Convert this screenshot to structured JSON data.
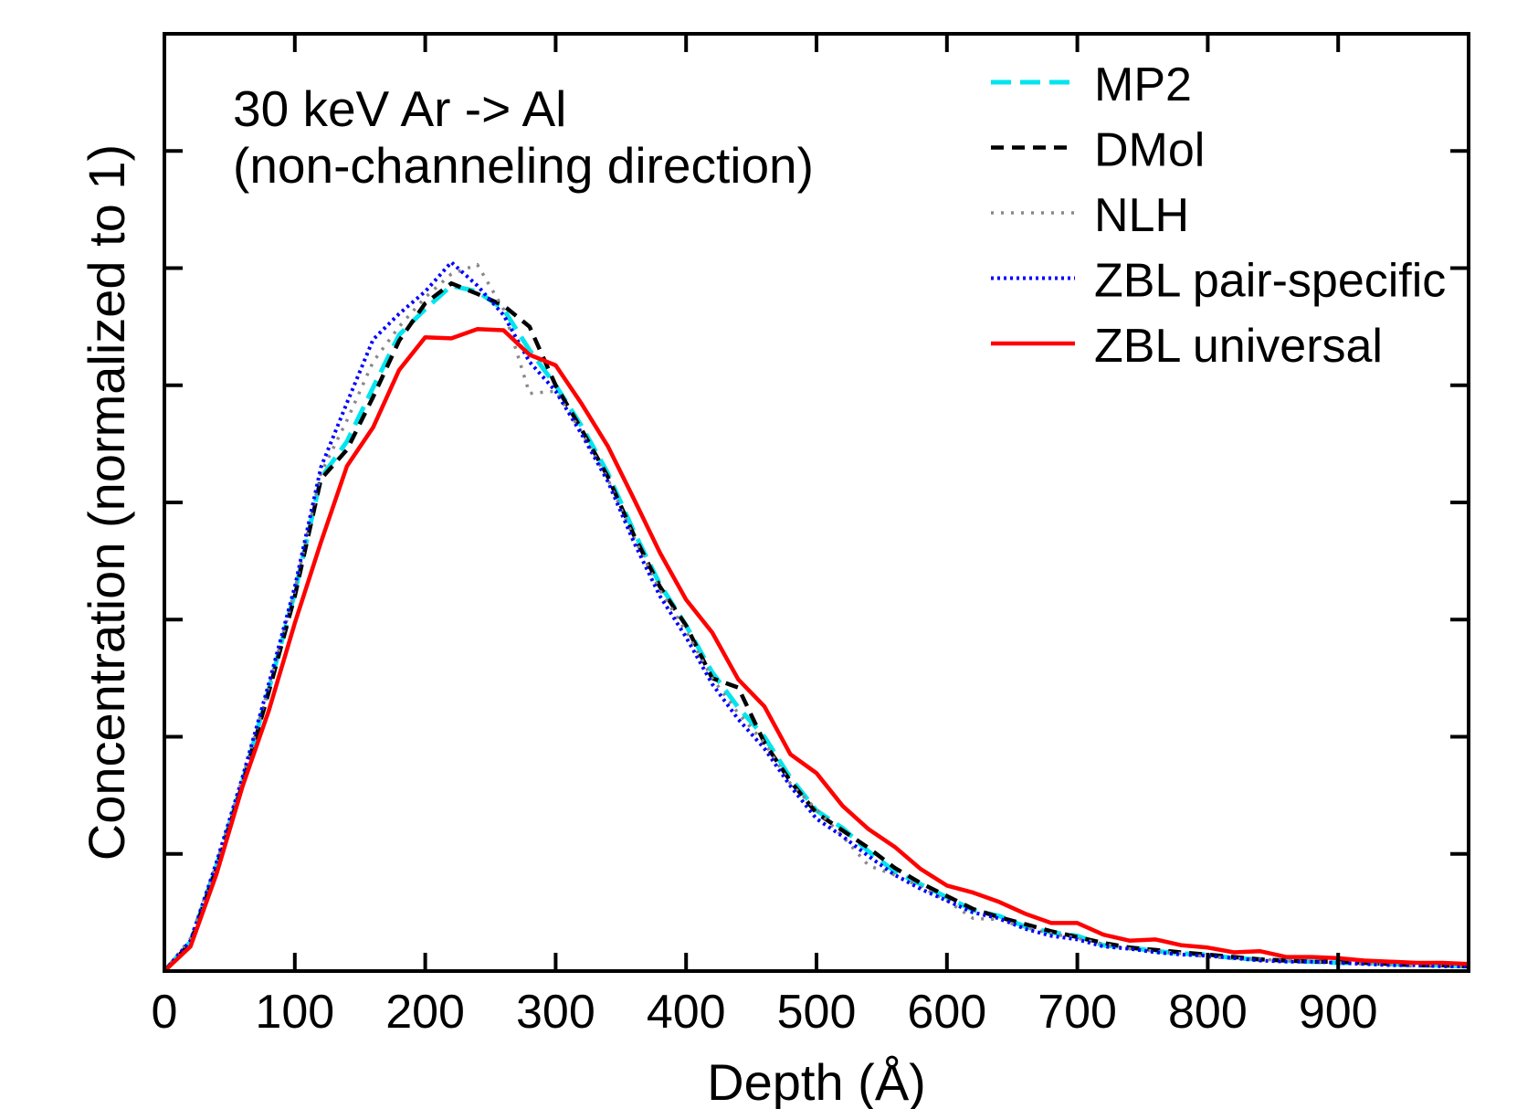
{
  "chart_data": {
    "type": "line",
    "title_lines": [
      "30 keV Ar -> Al",
      "(non-channeling direction)"
    ],
    "xlabel": "Depth (Å)",
    "ylabel": "Concentration (normalized to 1)",
    "xlim": [
      0,
      1000
    ],
    "ylim": [
      0,
      8
    ],
    "xticks": [
      0,
      100,
      200,
      300,
      400,
      500,
      600,
      700,
      800,
      900
    ],
    "xtick_labels": [
      "0",
      "100",
      "200",
      "300",
      "400",
      "500",
      "600",
      "700",
      "800",
      "900"
    ],
    "yticks_unlabeled": [
      1,
      2,
      3,
      4,
      5,
      6,
      7
    ],
    "grid": false,
    "legend_position": "top-right",
    "x": [
      0,
      20,
      40,
      60,
      80,
      100,
      120,
      140,
      160,
      180,
      200,
      220,
      240,
      260,
      280,
      300,
      320,
      340,
      360,
      380,
      400,
      420,
      440,
      460,
      480,
      500,
      520,
      540,
      560,
      580,
      600,
      620,
      640,
      660,
      680,
      700,
      720,
      740,
      760,
      780,
      800,
      820,
      840,
      860,
      880,
      900,
      920,
      940,
      960,
      980,
      1000
    ],
    "series": [
      {
        "name": "MP2",
        "color": "#00e5ee",
        "dash": "long-dash",
        "values": [
          0,
          0.25,
          0.9,
          1.62,
          2.4,
          3.23,
          4.21,
          4.52,
          4.98,
          5.43,
          5.65,
          5.85,
          5.8,
          5.65,
          5.3,
          5.0,
          4.65,
          4.25,
          3.75,
          3.3,
          2.95,
          2.55,
          2.25,
          2.0,
          1.65,
          1.37,
          1.22,
          1.02,
          0.85,
          0.74,
          0.63,
          0.52,
          0.47,
          0.38,
          0.33,
          0.3,
          0.22,
          0.2,
          0.17,
          0.15,
          0.14,
          0.11,
          0.1,
          0.09,
          0.08,
          0.07,
          0.07,
          0.06,
          0.05,
          0.05,
          0.04
        ]
      },
      {
        "name": "DMol",
        "color": "#000000",
        "dash": "dash",
        "values": [
          0,
          0.24,
          0.88,
          1.6,
          2.38,
          3.2,
          4.2,
          4.45,
          4.9,
          5.38,
          5.7,
          5.87,
          5.78,
          5.68,
          5.5,
          5.0,
          4.62,
          4.22,
          3.72,
          3.28,
          2.95,
          2.5,
          2.42,
          1.95,
          1.62,
          1.35,
          1.2,
          1.05,
          0.88,
          0.75,
          0.64,
          0.53,
          0.46,
          0.4,
          0.34,
          0.29,
          0.24,
          0.2,
          0.18,
          0.16,
          0.14,
          0.12,
          0.1,
          0.09,
          0.08,
          0.08,
          0.07,
          0.06,
          0.05,
          0.05,
          0.04
        ]
      },
      {
        "name": "NLH",
        "color": "#888888",
        "dash": "dot",
        "values": [
          0,
          0.28,
          0.92,
          1.65,
          2.42,
          3.25,
          4.25,
          4.7,
          5.2,
          5.5,
          5.75,
          5.95,
          6.03,
          5.65,
          4.93,
          4.95,
          4.6,
          4.2,
          3.7,
          3.25,
          2.9,
          2.5,
          2.2,
          1.95,
          1.6,
          1.38,
          1.15,
          0.9,
          0.82,
          0.72,
          0.6,
          0.45,
          0.44,
          0.37,
          0.32,
          0.28,
          0.23,
          0.19,
          0.17,
          0.15,
          0.12,
          0.11,
          0.1,
          0.09,
          0.08,
          0.07,
          0.06,
          0.06,
          0.05,
          0.05,
          0.04
        ]
      },
      {
        "name": "ZBL pair-specific",
        "color": "#0000ff",
        "dash": "dense-dot",
        "values": [
          0,
          0.26,
          0.93,
          1.66,
          2.45,
          3.28,
          4.3,
          4.85,
          5.39,
          5.61,
          5.8,
          6.05,
          5.85,
          5.6,
          5.2,
          4.95,
          4.58,
          4.18,
          3.66,
          3.2,
          2.85,
          2.45,
          2.15,
          1.9,
          1.58,
          1.3,
          1.15,
          0.98,
          0.82,
          0.7,
          0.6,
          0.5,
          0.45,
          0.36,
          0.3,
          0.27,
          0.21,
          0.19,
          0.16,
          0.14,
          0.13,
          0.11,
          0.09,
          0.08,
          0.08,
          0.07,
          0.06,
          0.05,
          0.05,
          0.04,
          0.04
        ]
      },
      {
        "name": "ZBL universal",
        "color": "#ff0000",
        "dash": "solid",
        "values": [
          0,
          0.21,
          0.83,
          1.58,
          2.22,
          2.97,
          3.66,
          4.31,
          4.64,
          5.13,
          5.41,
          5.4,
          5.48,
          5.47,
          5.26,
          5.17,
          4.84,
          4.48,
          4.03,
          3.57,
          3.17,
          2.89,
          2.49,
          2.26,
          1.85,
          1.69,
          1.41,
          1.21,
          1.06,
          0.87,
          0.73,
          0.67,
          0.59,
          0.49,
          0.41,
          0.41,
          0.31,
          0.26,
          0.27,
          0.22,
          0.2,
          0.16,
          0.17,
          0.12,
          0.12,
          0.11,
          0.09,
          0.08,
          0.07,
          0.07,
          0.06
        ]
      }
    ]
  }
}
